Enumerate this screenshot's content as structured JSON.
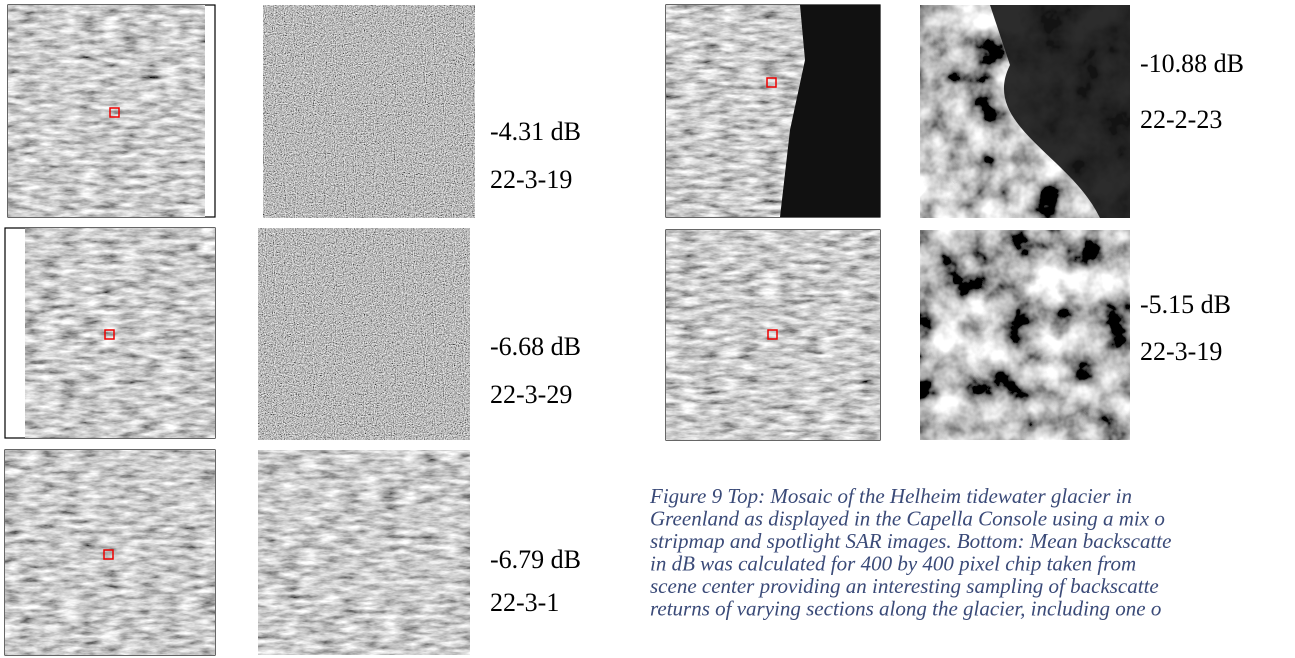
{
  "panels": [
    {
      "backscatter": "-4.31 dB",
      "date": "22-3-19"
    },
    {
      "backscatter": "-6.68 dB",
      "date": "22-3-29"
    },
    {
      "backscatter": "-6.79 dB",
      "date": "22-3-1"
    },
    {
      "backscatter": "-10.88 dB",
      "date": "22-2-23"
    },
    {
      "backscatter": "-5.15 dB",
      "date": "22-3-19"
    }
  ],
  "caption": {
    "lines": [
      "Figure 9 Top: Mosaic of the Helheim tidewater glacier in",
      "Greenland as displayed in the Capella Console using a mix o",
      "stripmap and spotlight SAR images. Bottom: Mean backscatte",
      "in dB was calculated for 400 by 400 pixel chip taken from",
      "scene center providing an interesting sampling of backscatte",
      "returns of varying sections along the glacier, including one o"
    ]
  }
}
